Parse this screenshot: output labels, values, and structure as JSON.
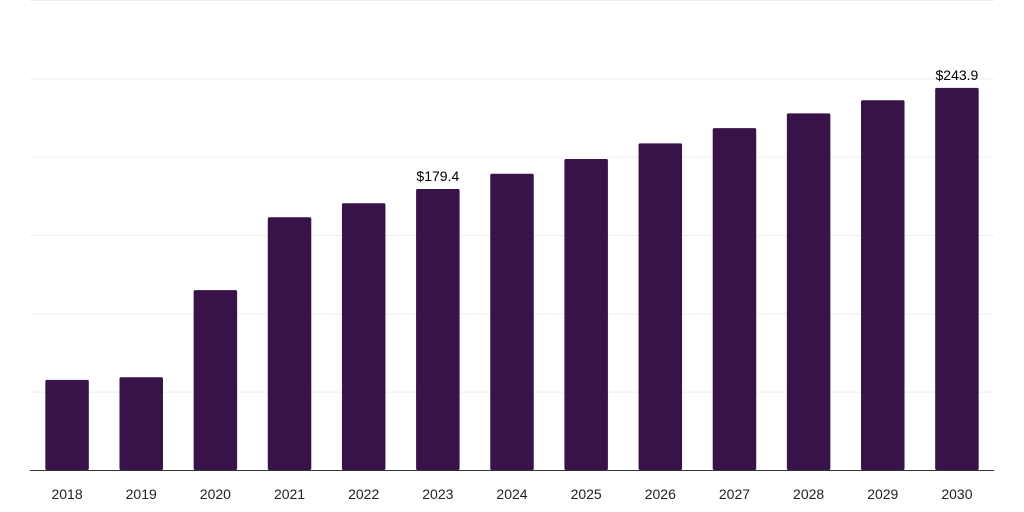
{
  "chart_data": {
    "type": "bar",
    "title": "",
    "xlabel": "",
    "ylabel": "",
    "categories": [
      "2018",
      "2019",
      "2020",
      "2021",
      "2022",
      "2023",
      "2024",
      "2025",
      "2026",
      "2027",
      "2028",
      "2029",
      "2030"
    ],
    "values": [
      57.5,
      59.2,
      114.8,
      161.3,
      170.3,
      179.4,
      189.1,
      198.5,
      208.5,
      218.2,
      227.6,
      236.0,
      243.9
    ],
    "data_labels": [
      {
        "category": "2023",
        "text": "$179.4"
      },
      {
        "category": "2030",
        "text": "$243.9"
      }
    ],
    "ylim": [
      0,
      300
    ],
    "grid": true,
    "colors": {
      "bar": "#371349",
      "grid": "#eeeeee",
      "axis": "#333333"
    }
  }
}
